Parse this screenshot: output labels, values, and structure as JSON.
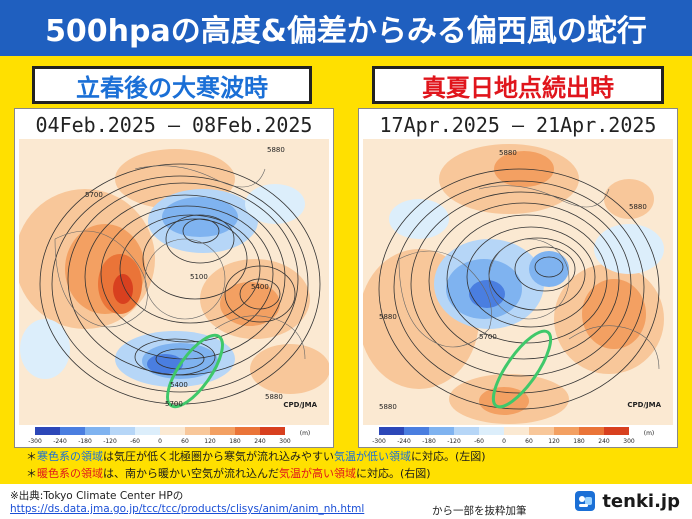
{
  "header": {
    "title": "500hpaの高度&偏差からみる偏西風の蛇行"
  },
  "left": {
    "label": "立春後の大寒波時",
    "date": "04Feb.2025 – 08Feb.2025",
    "credit": "CPD/JMA",
    "contours": [
      "5700",
      "5100",
      "5400",
      "5400",
      "5700",
      "5880",
      "5880"
    ]
  },
  "right": {
    "label": "真夏日地点続出時",
    "date": "17Apr.2025 – 21Apr.2025",
    "credit": "CPD/JMA",
    "contours": [
      "5880",
      "5880",
      "5700",
      "5880",
      "5880"
    ]
  },
  "scale": {
    "ticks": [
      "-300",
      "-240",
      "-180",
      "-120",
      "-60",
      "0",
      "60",
      "120",
      "180",
      "240",
      "300"
    ],
    "unit": "(m)",
    "colors": [
      "#2c47b8",
      "#4a7ee0",
      "#7fb3f0",
      "#b6d6f7",
      "#dceefb",
      "#fbe9d2",
      "#f8c79a",
      "#f3a062",
      "#ea7438",
      "#d8401f"
    ]
  },
  "notes": {
    "n1_a": "＊",
    "n1_b": "寒色系の領域",
    "n1_c": "は気圧が低く北極圏から寒気が流れ込みやすい",
    "n1_d": "気温が低い領域",
    "n1_e": "に対応。(左図)",
    "n2_a": "＊",
    "n2_b": "暖色系の領域",
    "n2_c": "は、南から暖かい空気が流れ込んだ",
    "n2_d": "気温が高い領域",
    "n2_e": "に対応。(右図)"
  },
  "footer": {
    "source": "※出典:Tokyo Climate Center HPの",
    "url": "https://ds.data.jma.go.jp/tcc/tcc/products/clisys/anim/anim_nh.html",
    "suffix": "から一部を抜粋加筆",
    "logo": "tenki.jp"
  }
}
